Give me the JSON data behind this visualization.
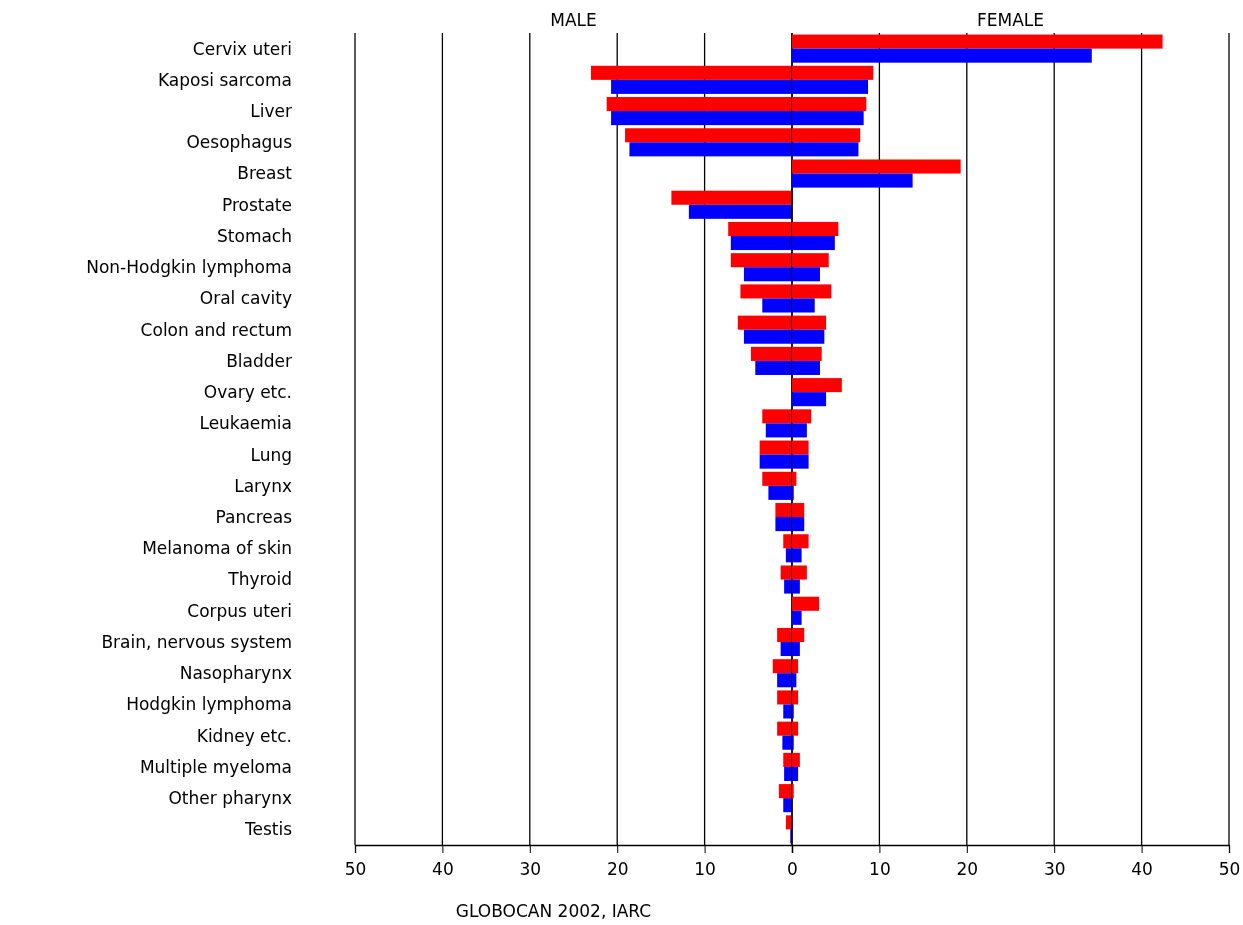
{
  "chart_data": [
    {
      "type": "bar",
      "orientation": "horizontal",
      "grid": "x",
      "title": "MALE",
      "categories": [
        "Cervix uteri",
        "Kaposi sarcoma",
        "Liver",
        "Oesophagus",
        "Breast",
        "Prostate",
        "Stomach",
        "Non-Hodgkin lymphoma",
        "Oral cavity",
        "Colon and rectum",
        "Bladder",
        "Ovary etc.",
        "Leukaemia",
        "Lung",
        "Larynx",
        "Pancreas",
        "Melanoma of skin",
        "Thyroid",
        "Corpus uteri",
        "Brain, nervous system",
        "Nasopharynx",
        "Hodgkin lymphoma",
        "Kidney etc.",
        "Multiple myeloma",
        "Other pharynx",
        "Testis"
      ],
      "series": [
        {
          "color": "#ff0000",
          "values": [
            null,
            23.0,
            21.2,
            19.1,
            null,
            13.8,
            7.3,
            7.0,
            5.9,
            6.2,
            4.7,
            null,
            3.4,
            3.7,
            3.4,
            1.9,
            1.0,
            1.3,
            null,
            1.7,
            2.2,
            1.7,
            1.7,
            1.0,
            1.5,
            0.7
          ]
        },
        {
          "color": "#0000ff",
          "values": [
            null,
            20.7,
            20.7,
            18.6,
            null,
            11.8,
            7.0,
            5.5,
            3.4,
            5.5,
            4.2,
            null,
            3.0,
            3.7,
            2.7,
            1.9,
            0.7,
            0.9,
            null,
            1.3,
            1.7,
            1.0,
            1.1,
            0.9,
            1.0,
            0.2
          ]
        }
      ],
      "xlim": [
        50,
        0
      ],
      "xticks": [
        50,
        40,
        30,
        20,
        10,
        0
      ],
      "annotations": [
        "GLOBOCAN 2002, IARC"
      ]
    },
    {
      "type": "bar",
      "orientation": "horizontal",
      "grid": "x",
      "title": "FEMALE",
      "categories": [
        null,
        null,
        null,
        null,
        null,
        null,
        null,
        null,
        null,
        null,
        null,
        null,
        null,
        null,
        null,
        null,
        null,
        null,
        null,
        null,
        null,
        null,
        null,
        null,
        null,
        null
      ],
      "series": [
        {
          "color": "#ff0000",
          "values": [
            42.4,
            9.3,
            8.5,
            7.8,
            19.3,
            null,
            5.3,
            4.2,
            4.5,
            3.9,
            3.4,
            5.7,
            2.2,
            1.9,
            0.5,
            1.4,
            1.9,
            1.7,
            3.1,
            1.4,
            0.7,
            0.7,
            0.7,
            0.9,
            0.2,
            null
          ]
        },
        {
          "color": "#0000ff",
          "values": [
            34.3,
            8.7,
            8.2,
            7.6,
            13.8,
            null,
            4.9,
            3.2,
            2.6,
            3.7,
            3.2,
            3.9,
            1.7,
            1.9,
            0.2,
            1.4,
            1.1,
            0.9,
            1.1,
            0.9,
            0.5,
            0.2,
            0.2,
            0.7,
            null,
            null
          ]
        }
      ],
      "xlim": [
        0,
        50
      ],
      "xticks": [
        {
          "value": 0,
          "label": null
        },
        10,
        20,
        30,
        40,
        50
      ]
    }
  ]
}
